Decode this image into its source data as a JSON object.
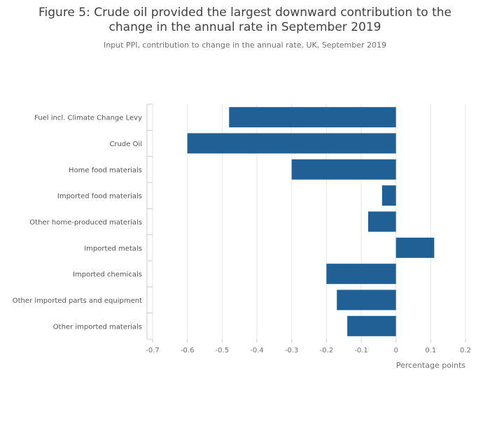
{
  "chart_data": {
    "type": "bar",
    "orientation": "horizontal",
    "title_line1": "Figure 5: Crude oil provided the largest downward contribution to the",
    "title_line2": "change in the annual rate in September 2019",
    "subtitle": "Input PPI, contribution to change in the annual rate, UK, September 2019",
    "xlabel": "Percentage points",
    "ylabel": "",
    "xlim": [
      -0.7,
      0.2
    ],
    "xticks": [
      -0.7,
      -0.6,
      -0.5,
      -0.4,
      -0.3,
      -0.2,
      -0.1,
      0,
      0.1,
      0.2
    ],
    "xtick_labels": [
      "-0.7",
      "-0.6",
      "-0.5",
      "-0.4",
      "-0.3",
      "-0.2",
      "-0.1",
      "0",
      "0.1",
      "0.2"
    ],
    "grid": true,
    "bar_color": "#206095",
    "categories": [
      "Fuel incl. Climate Change Levy",
      "Crude Oil",
      "Home food materials",
      "Imported food materials",
      "Other home-produced materials",
      "Imported metals",
      "Imported chemicals",
      "Other imported parts and equipment",
      "Other imported materials"
    ],
    "values": [
      -0.48,
      -0.6,
      -0.3,
      -0.04,
      -0.08,
      0.11,
      -0.2,
      -0.17,
      -0.14
    ]
  }
}
